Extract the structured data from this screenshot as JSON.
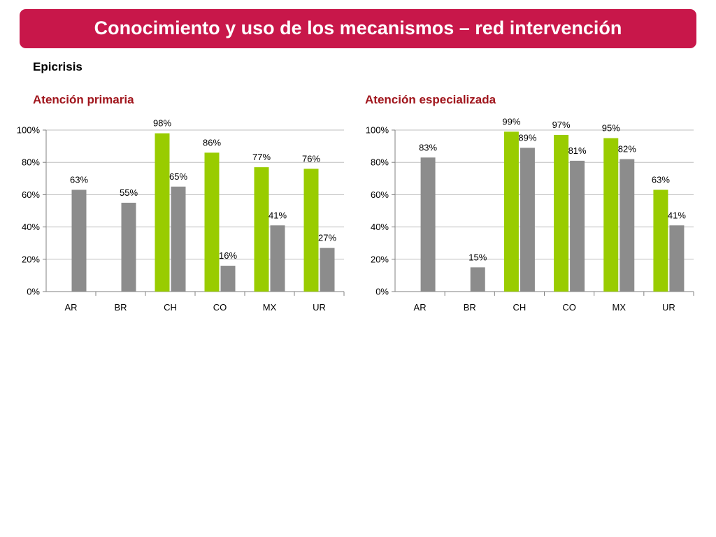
{
  "slide": {
    "title": "Conocimiento y uso de los mecanismos – red intervención",
    "subtitle": "Epicrisis",
    "title_color": "#c8174a",
    "panel_title_color": "#a0151c"
  },
  "colors": {
    "conocimiento": "#99cc00",
    "uso": "#8c8c8c",
    "grid": "#bfbfbf",
    "axis": "#808080"
  },
  "chart_data": [
    {
      "type": "bar",
      "title": "Atención primaria",
      "categories": [
        "AR",
        "BR",
        "CH",
        "CO",
        "MX",
        "UR"
      ],
      "ylim": [
        0,
        100
      ],
      "yticks": [
        "0%",
        "20%",
        "40%",
        "60%",
        "80%",
        "100%"
      ],
      "grid": true,
      "series": [
        {
          "color": "#99cc00",
          "values": [
            null,
            null,
            98,
            86,
            77,
            76
          ]
        },
        {
          "color": "#8c8c8c",
          "values": [
            63,
            55,
            65,
            16,
            41,
            27
          ]
        }
      ],
      "labels": [
        [
          null,
          null,
          "98%",
          "86%",
          "77%",
          "76%"
        ],
        [
          "63%",
          "55%",
          "65%",
          "16%",
          "41%",
          "27%"
        ]
      ]
    },
    {
      "type": "bar",
      "title": "Atención especializada",
      "categories": [
        "AR",
        "BR",
        "CH",
        "CO",
        "MX",
        "UR"
      ],
      "ylim": [
        0,
        100
      ],
      "yticks": [
        "0%",
        "20%",
        "40%",
        "60%",
        "80%",
        "100%"
      ],
      "grid": true,
      "series": [
        {
          "color": "#99cc00",
          "values": [
            null,
            null,
            99,
            97,
            95,
            63
          ]
        },
        {
          "color": "#8c8c8c",
          "values": [
            83,
            15,
            89,
            81,
            82,
            41
          ]
        }
      ],
      "labels": [
        [
          null,
          null,
          "99%",
          "97%",
          "95%",
          "63%"
        ],
        [
          "83%",
          "15%",
          "89%",
          "81%",
          "82%",
          "41%"
        ]
      ]
    }
  ]
}
